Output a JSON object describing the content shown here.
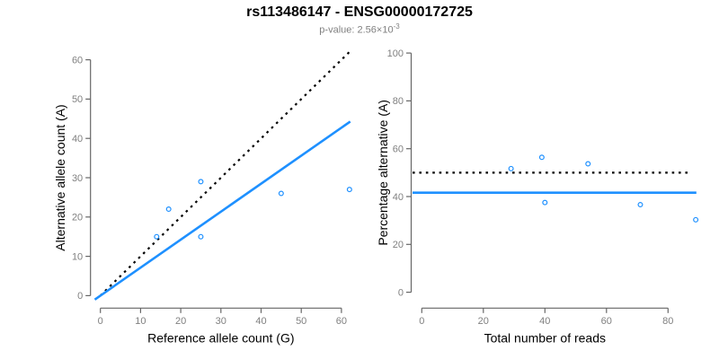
{
  "header": {
    "title": "rs113486147 - ENSG00000172725",
    "pvalue_prefix": "p-value: 2.56×10",
    "pvalue_exponent": "-3"
  },
  "colors": {
    "accent_blue": "#1E90FF",
    "line_black": "#000000",
    "tick_label_gray": "#808080",
    "axis_gray": "#666666",
    "background": "#ffffff"
  },
  "chart_data": [
    {
      "type": "scatter",
      "panel": "left",
      "xlabel": "Reference allele count (G)",
      "ylabel": "Alternative allele count (A)",
      "xticks": [
        0,
        10,
        20,
        30,
        40,
        50,
        60
      ],
      "yticks": [
        0,
        10,
        20,
        30,
        40,
        50,
        60
      ],
      "xlim": [
        0,
        62
      ],
      "ylim": [
        0,
        62
      ],
      "grid": false,
      "legend": false,
      "marker": "open-circle",
      "points": [
        [
          14,
          15
        ],
        [
          17,
          22
        ],
        [
          25,
          15
        ],
        [
          25,
          29
        ],
        [
          45,
          26
        ],
        [
          62,
          27
        ]
      ],
      "lines": [
        {
          "name": "identity-line",
          "style": "dotted",
          "color": "#000000",
          "slope": 1,
          "intercept": 0,
          "xdraw": [
            0,
            62.4
          ]
        },
        {
          "name": "fit-line",
          "style": "solid",
          "color": "#1E90FF",
          "slope": 0.712,
          "intercept": 0,
          "xdraw": [
            -1.4,
            62.2
          ]
        }
      ]
    },
    {
      "type": "scatter",
      "panel": "right",
      "xlabel": "Total number of reads",
      "ylabel": "Percentage alternative (A)",
      "xticks": [
        0,
        20,
        40,
        60,
        80
      ],
      "yticks": [
        0,
        20,
        40,
        60,
        80,
        100
      ],
      "xlim": [
        0,
        89
      ],
      "ylim": [
        0,
        100
      ],
      "grid": false,
      "legend": false,
      "marker": "open-circle",
      "points": [
        [
          29,
          51.7
        ],
        [
          39,
          56.4
        ],
        [
          40,
          37.5
        ],
        [
          54,
          53.7
        ],
        [
          71,
          36.6
        ],
        [
          89,
          30.3
        ]
      ],
      "lines": [
        {
          "name": "expected-50-line",
          "style": "dotted",
          "color": "#000000",
          "hline": 50,
          "xdraw": [
            -3,
            87.3
          ]
        },
        {
          "name": "fitted-mean-line",
          "style": "solid",
          "color": "#1E90FF",
          "hline": 41.6,
          "xdraw": [
            -3,
            89.2
          ]
        }
      ]
    }
  ]
}
